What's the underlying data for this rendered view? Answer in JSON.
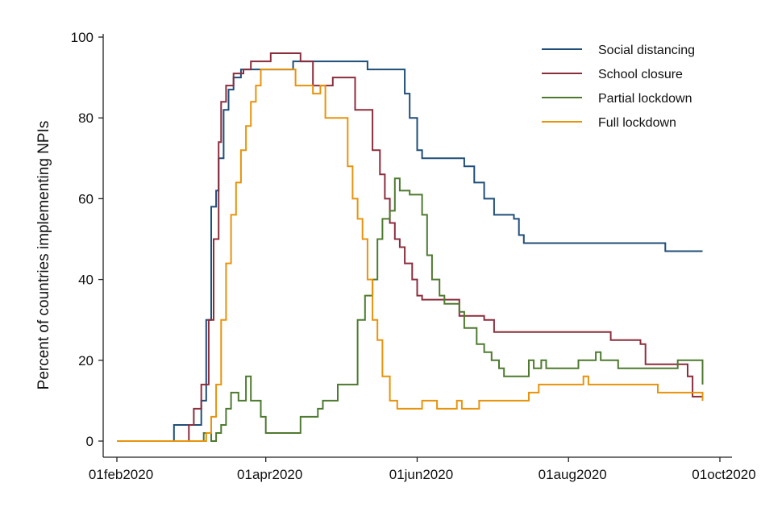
{
  "chart_data": {
    "type": "line",
    "title": "",
    "xlabel": "",
    "ylabel": "Percent of countries implementing NPIs",
    "xlim": [
      "2020-02-01",
      "2020-10-01"
    ],
    "ylim": [
      0,
      100
    ],
    "x_ticks": [
      "2020-02-01",
      "2020-04-01",
      "2020-06-01",
      "2020-08-01",
      "2020-10-01"
    ],
    "x_tick_labels": [
      "01feb2020",
      "01apr2020",
      "01jun2020",
      "01aug2020",
      "01oct2020"
    ],
    "y_ticks": [
      0,
      20,
      40,
      60,
      80,
      100
    ],
    "y_tick_labels": [
      "0",
      "20",
      "40",
      "60",
      "80",
      "100"
    ],
    "grid": false,
    "legend_position": "top-right",
    "series": [
      {
        "name": "Social distancing",
        "color": "#1f4e79",
        "points": [
          [
            "2020-02-01",
            0
          ],
          [
            "2020-02-22",
            0
          ],
          [
            "2020-02-24",
            4
          ],
          [
            "2020-03-01",
            4
          ],
          [
            "2020-03-04",
            4
          ],
          [
            "2020-03-06",
            10
          ],
          [
            "2020-03-08",
            30
          ],
          [
            "2020-03-10",
            58
          ],
          [
            "2020-03-12",
            62
          ],
          [
            "2020-03-13",
            70
          ],
          [
            "2020-03-15",
            82
          ],
          [
            "2020-03-17",
            87
          ],
          [
            "2020-03-19",
            90
          ],
          [
            "2020-03-22",
            92
          ],
          [
            "2020-04-10",
            92
          ],
          [
            "2020-04-12",
            94
          ],
          [
            "2020-05-10",
            94
          ],
          [
            "2020-05-12",
            92
          ],
          [
            "2020-05-24",
            92
          ],
          [
            "2020-05-27",
            86
          ],
          [
            "2020-05-29",
            80
          ],
          [
            "2020-06-01",
            72
          ],
          [
            "2020-06-03",
            70
          ],
          [
            "2020-06-18",
            70
          ],
          [
            "2020-06-20",
            68
          ],
          [
            "2020-06-24",
            64
          ],
          [
            "2020-06-28",
            60
          ],
          [
            "2020-07-02",
            56
          ],
          [
            "2020-07-10",
            55
          ],
          [
            "2020-07-12",
            51
          ],
          [
            "2020-07-14",
            49
          ],
          [
            "2020-09-07",
            49
          ],
          [
            "2020-09-09",
            47
          ],
          [
            "2020-09-24",
            47
          ]
        ]
      },
      {
        "name": "School closure",
        "color": "#8b2e3c",
        "points": [
          [
            "2020-02-01",
            0
          ],
          [
            "2020-02-28",
            0
          ],
          [
            "2020-03-01",
            4
          ],
          [
            "2020-03-03",
            8
          ],
          [
            "2020-03-06",
            14
          ],
          [
            "2020-03-09",
            30
          ],
          [
            "2020-03-11",
            50
          ],
          [
            "2020-03-13",
            74
          ],
          [
            "2020-03-14",
            84
          ],
          [
            "2020-03-16",
            88
          ],
          [
            "2020-03-19",
            91
          ],
          [
            "2020-03-23",
            92
          ],
          [
            "2020-03-26",
            94
          ],
          [
            "2020-04-02",
            94
          ],
          [
            "2020-04-03",
            96
          ],
          [
            "2020-04-12",
            96
          ],
          [
            "2020-04-15",
            94
          ],
          [
            "2020-04-18",
            94
          ],
          [
            "2020-04-20",
            88
          ],
          [
            "2020-04-26",
            88
          ],
          [
            "2020-04-28",
            90
          ],
          [
            "2020-05-05",
            90
          ],
          [
            "2020-05-07",
            82
          ],
          [
            "2020-05-12",
            82
          ],
          [
            "2020-05-14",
            72
          ],
          [
            "2020-05-17",
            66
          ],
          [
            "2020-05-19",
            60
          ],
          [
            "2020-05-21",
            54
          ],
          [
            "2020-05-23",
            50
          ],
          [
            "2020-05-25",
            48
          ],
          [
            "2020-05-27",
            44
          ],
          [
            "2020-05-30",
            40
          ],
          [
            "2020-06-01",
            36
          ],
          [
            "2020-06-03",
            35
          ],
          [
            "2020-06-16",
            35
          ],
          [
            "2020-06-18",
            31
          ],
          [
            "2020-06-28",
            30
          ],
          [
            "2020-07-02",
            27
          ],
          [
            "2020-08-16",
            27
          ],
          [
            "2020-08-18",
            25
          ],
          [
            "2020-08-30",
            24
          ],
          [
            "2020-09-01",
            19
          ],
          [
            "2020-09-16",
            19
          ],
          [
            "2020-09-18",
            16
          ],
          [
            "2020-09-20",
            11
          ],
          [
            "2020-09-24",
            10
          ]
        ]
      },
      {
        "name": "Partial lockdown",
        "color": "#4e7a2f",
        "points": [
          [
            "2020-02-01",
            0
          ],
          [
            "2020-03-06",
            0
          ],
          [
            "2020-03-07",
            2
          ],
          [
            "2020-03-10",
            0
          ],
          [
            "2020-03-12",
            2
          ],
          [
            "2020-03-14",
            4
          ],
          [
            "2020-03-16",
            8
          ],
          [
            "2020-03-18",
            12
          ],
          [
            "2020-03-21",
            10
          ],
          [
            "2020-03-24",
            16
          ],
          [
            "2020-03-26",
            10
          ],
          [
            "2020-03-29",
            10
          ],
          [
            "2020-03-30",
            6
          ],
          [
            "2020-04-01",
            2
          ],
          [
            "2020-04-13",
            2
          ],
          [
            "2020-04-15",
            6
          ],
          [
            "2020-04-20",
            6
          ],
          [
            "2020-04-22",
            8
          ],
          [
            "2020-04-24",
            10
          ],
          [
            "2020-04-28",
            10
          ],
          [
            "2020-04-30",
            14
          ],
          [
            "2020-05-05",
            14
          ],
          [
            "2020-05-08",
            30
          ],
          [
            "2020-05-11",
            36
          ],
          [
            "2020-05-14",
            40
          ],
          [
            "2020-05-16",
            50
          ],
          [
            "2020-05-18",
            55
          ],
          [
            "2020-05-21",
            57
          ],
          [
            "2020-05-23",
            65
          ],
          [
            "2020-05-25",
            62
          ],
          [
            "2020-05-27",
            62
          ],
          [
            "2020-05-29",
            61
          ],
          [
            "2020-06-01",
            61
          ],
          [
            "2020-06-03",
            56
          ],
          [
            "2020-06-05",
            46
          ],
          [
            "2020-06-07",
            40
          ],
          [
            "2020-06-10",
            36
          ],
          [
            "2020-06-12",
            34
          ],
          [
            "2020-06-18",
            32
          ],
          [
            "2020-06-20",
            28
          ],
          [
            "2020-06-25",
            24
          ],
          [
            "2020-06-28",
            22
          ],
          [
            "2020-07-01",
            20
          ],
          [
            "2020-07-04",
            18
          ],
          [
            "2020-07-06",
            16
          ],
          [
            "2020-07-14",
            16
          ],
          [
            "2020-07-16",
            20
          ],
          [
            "2020-07-18",
            18
          ],
          [
            "2020-07-21",
            20
          ],
          [
            "2020-07-23",
            18
          ],
          [
            "2020-08-03",
            18
          ],
          [
            "2020-08-05",
            20
          ],
          [
            "2020-08-10",
            20
          ],
          [
            "2020-08-12",
            22
          ],
          [
            "2020-08-14",
            20
          ],
          [
            "2020-08-19",
            20
          ],
          [
            "2020-08-21",
            18
          ],
          [
            "2020-09-12",
            18
          ],
          [
            "2020-09-14",
            20
          ],
          [
            "2020-09-22",
            20
          ],
          [
            "2020-09-24",
            14
          ]
        ]
      },
      {
        "name": "Full lockdown",
        "color": "#e8930c",
        "points": [
          [
            "2020-02-01",
            0
          ],
          [
            "2020-03-06",
            0
          ],
          [
            "2020-03-08",
            2
          ],
          [
            "2020-03-10",
            6
          ],
          [
            "2020-03-12",
            14
          ],
          [
            "2020-03-14",
            30
          ],
          [
            "2020-03-16",
            44
          ],
          [
            "2020-03-18",
            56
          ],
          [
            "2020-03-20",
            64
          ],
          [
            "2020-03-22",
            72
          ],
          [
            "2020-03-24",
            78
          ],
          [
            "2020-03-26",
            84
          ],
          [
            "2020-03-28",
            88
          ],
          [
            "2020-03-30",
            92
          ],
          [
            "2020-04-11",
            92
          ],
          [
            "2020-04-13",
            88
          ],
          [
            "2020-04-18",
            88
          ],
          [
            "2020-04-20",
            86
          ],
          [
            "2020-04-23",
            88
          ],
          [
            "2020-04-25",
            80
          ],
          [
            "2020-05-02",
            80
          ],
          [
            "2020-05-04",
            68
          ],
          [
            "2020-05-06",
            60
          ],
          [
            "2020-05-08",
            55
          ],
          [
            "2020-05-10",
            50
          ],
          [
            "2020-05-12",
            40
          ],
          [
            "2020-05-14",
            30
          ],
          [
            "2020-05-16",
            25
          ],
          [
            "2020-05-18",
            16
          ],
          [
            "2020-05-21",
            10
          ],
          [
            "2020-05-24",
            8
          ],
          [
            "2020-06-01",
            8
          ],
          [
            "2020-06-03",
            10
          ],
          [
            "2020-06-07",
            10
          ],
          [
            "2020-06-09",
            8
          ],
          [
            "2020-06-15",
            8
          ],
          [
            "2020-06-17",
            10
          ],
          [
            "2020-06-19",
            8
          ],
          [
            "2020-06-24",
            8
          ],
          [
            "2020-06-26",
            10
          ],
          [
            "2020-07-14",
            10
          ],
          [
            "2020-07-16",
            12
          ],
          [
            "2020-07-20",
            14
          ],
          [
            "2020-08-05",
            14
          ],
          [
            "2020-08-07",
            16
          ],
          [
            "2020-08-09",
            14
          ],
          [
            "2020-09-04",
            14
          ],
          [
            "2020-09-06",
            12
          ],
          [
            "2020-09-22",
            12
          ],
          [
            "2020-09-24",
            10
          ]
        ]
      }
    ]
  }
}
